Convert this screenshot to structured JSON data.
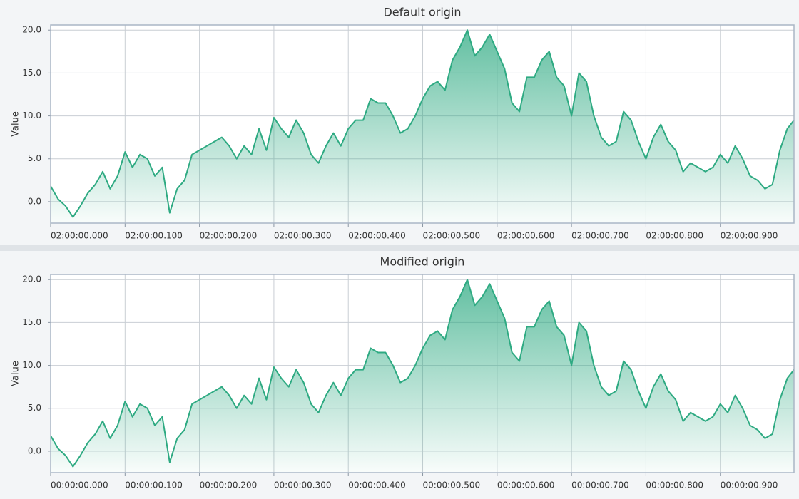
{
  "chart_data": [
    {
      "type": "area",
      "title": "Default origin",
      "ylabel": "Value",
      "color": "#2eaa82",
      "grid": true,
      "x": [
        0,
        10,
        20,
        30,
        40,
        50,
        60,
        70,
        80,
        90,
        100,
        110,
        120,
        130,
        140,
        150,
        160,
        170,
        180,
        190,
        200,
        210,
        220,
        230,
        240,
        250,
        260,
        270,
        280,
        290,
        300,
        310,
        320,
        330,
        340,
        350,
        360,
        370,
        380,
        390,
        400,
        410,
        420,
        430,
        440,
        450,
        460,
        470,
        480,
        490,
        500,
        510,
        520,
        530,
        540,
        550,
        560,
        570,
        580,
        590,
        600,
        610,
        620,
        630,
        640,
        650,
        660,
        670,
        680,
        690,
        700,
        710,
        720,
        730,
        740,
        750,
        760,
        770,
        780,
        790,
        800,
        810,
        820,
        830,
        840,
        850,
        860,
        870,
        880,
        890,
        900,
        910,
        920,
        930,
        940,
        950,
        960,
        970,
        980,
        990,
        999
      ],
      "values": [
        1.8,
        0.3,
        -0.5,
        -1.8,
        -0.5,
        1.0,
        2.0,
        3.5,
        1.5,
        3.0,
        5.8,
        4.0,
        5.5,
        5.0,
        3.0,
        4.0,
        -1.3,
        1.5,
        2.5,
        5.5,
        6.0,
        6.5,
        7.0,
        7.5,
        6.5,
        5.0,
        6.5,
        5.5,
        8.5,
        6.0,
        9.8,
        8.5,
        7.5,
        9.5,
        8.0,
        5.5,
        4.5,
        6.5,
        8.0,
        6.5,
        8.5,
        9.5,
        9.5,
        12.0,
        11.5,
        11.5,
        10.0,
        8.0,
        8.5,
        10.0,
        12.0,
        13.5,
        14.0,
        13.0,
        16.5,
        18.0,
        20.0,
        17.0,
        18.0,
        19.5,
        17.5,
        15.5,
        11.5,
        10.5,
        14.5,
        14.5,
        16.5,
        17.5,
        14.5,
        13.5,
        10.0,
        15.0,
        14.0,
        10.0,
        7.5,
        6.5,
        7.0,
        10.5,
        9.5,
        7.0,
        5.0,
        7.5,
        9.0,
        7.0,
        6.0,
        3.5,
        4.5,
        4.0,
        3.5,
        4.0,
        5.5,
        4.5,
        6.5,
        5.0,
        3.0,
        2.5,
        1.5,
        2.0,
        6.0,
        8.5,
        9.5
      ],
      "xlim": [
        0,
        999
      ],
      "ylim": [
        -2.5,
        20.6
      ],
      "xticks": [
        {
          "value": 0,
          "label": "02:00:00.000"
        },
        {
          "value": 100,
          "label": "02:00:00.100"
        },
        {
          "value": 200,
          "label": "02:00:00.200"
        },
        {
          "value": 300,
          "label": "02:00:00.300"
        },
        {
          "value": 400,
          "label": "02:00:00.400"
        },
        {
          "value": 500,
          "label": "02:00:00.500"
        },
        {
          "value": 600,
          "label": "02:00:00.600"
        },
        {
          "value": 700,
          "label": "02:00:00.700"
        },
        {
          "value": 800,
          "label": "02:00:00.800"
        },
        {
          "value": 900,
          "label": "02:00:00.900"
        }
      ],
      "yticks": [
        {
          "value": 0,
          "label": "0.0"
        },
        {
          "value": 5,
          "label": "5.0"
        },
        {
          "value": 10,
          "label": "10.0"
        },
        {
          "value": 15,
          "label": "15.0"
        },
        {
          "value": 20,
          "label": "20.0"
        }
      ]
    },
    {
      "type": "area",
      "title": "Modified origin",
      "ylabel": "Value",
      "color": "#2eaa82",
      "grid": true,
      "x": [
        0,
        10,
        20,
        30,
        40,
        50,
        60,
        70,
        80,
        90,
        100,
        110,
        120,
        130,
        140,
        150,
        160,
        170,
        180,
        190,
        200,
        210,
        220,
        230,
        240,
        250,
        260,
        270,
        280,
        290,
        300,
        310,
        320,
        330,
        340,
        350,
        360,
        370,
        380,
        390,
        400,
        410,
        420,
        430,
        440,
        450,
        460,
        470,
        480,
        490,
        500,
        510,
        520,
        530,
        540,
        550,
        560,
        570,
        580,
        590,
        600,
        610,
        620,
        630,
        640,
        650,
        660,
        670,
        680,
        690,
        700,
        710,
        720,
        730,
        740,
        750,
        760,
        770,
        780,
        790,
        800,
        810,
        820,
        830,
        840,
        850,
        860,
        870,
        880,
        890,
        900,
        910,
        920,
        930,
        940,
        950,
        960,
        970,
        980,
        990,
        999
      ],
      "values": [
        1.8,
        0.3,
        -0.5,
        -1.8,
        -0.5,
        1.0,
        2.0,
        3.5,
        1.5,
        3.0,
        5.8,
        4.0,
        5.5,
        5.0,
        3.0,
        4.0,
        -1.3,
        1.5,
        2.5,
        5.5,
        6.0,
        6.5,
        7.0,
        7.5,
        6.5,
        5.0,
        6.5,
        5.5,
        8.5,
        6.0,
        9.8,
        8.5,
        7.5,
        9.5,
        8.0,
        5.5,
        4.5,
        6.5,
        8.0,
        6.5,
        8.5,
        9.5,
        9.5,
        12.0,
        11.5,
        11.5,
        10.0,
        8.0,
        8.5,
        10.0,
        12.0,
        13.5,
        14.0,
        13.0,
        16.5,
        18.0,
        20.0,
        17.0,
        18.0,
        19.5,
        17.5,
        15.5,
        11.5,
        10.5,
        14.5,
        14.5,
        16.5,
        17.5,
        14.5,
        13.5,
        10.0,
        15.0,
        14.0,
        10.0,
        7.5,
        6.5,
        7.0,
        10.5,
        9.5,
        7.0,
        5.0,
        7.5,
        9.0,
        7.0,
        6.0,
        3.5,
        4.5,
        4.0,
        3.5,
        4.0,
        5.5,
        4.5,
        6.5,
        5.0,
        3.0,
        2.5,
        1.5,
        2.0,
        6.0,
        8.5,
        9.5
      ],
      "xlim": [
        0,
        999
      ],
      "ylim": [
        -2.5,
        20.6
      ],
      "xticks": [
        {
          "value": 0,
          "label": "00:00:00.000"
        },
        {
          "value": 100,
          "label": "00:00:00.100"
        },
        {
          "value": 200,
          "label": "00:00:00.200"
        },
        {
          "value": 300,
          "label": "00:00:00.300"
        },
        {
          "value": 400,
          "label": "00:00:00.400"
        },
        {
          "value": 500,
          "label": "00:00:00.500"
        },
        {
          "value": 600,
          "label": "00:00:00.600"
        },
        {
          "value": 700,
          "label": "00:00:00.700"
        },
        {
          "value": 800,
          "label": "00:00:00.800"
        },
        {
          "value": 900,
          "label": "00:00:00.900"
        }
      ],
      "yticks": [
        {
          "value": 0,
          "label": "0.0"
        },
        {
          "value": 5,
          "label": "5.0"
        },
        {
          "value": 10,
          "label": "10.0"
        },
        {
          "value": 15,
          "label": "15.0"
        },
        {
          "value": 20,
          "label": "20.0"
        }
      ]
    }
  ]
}
